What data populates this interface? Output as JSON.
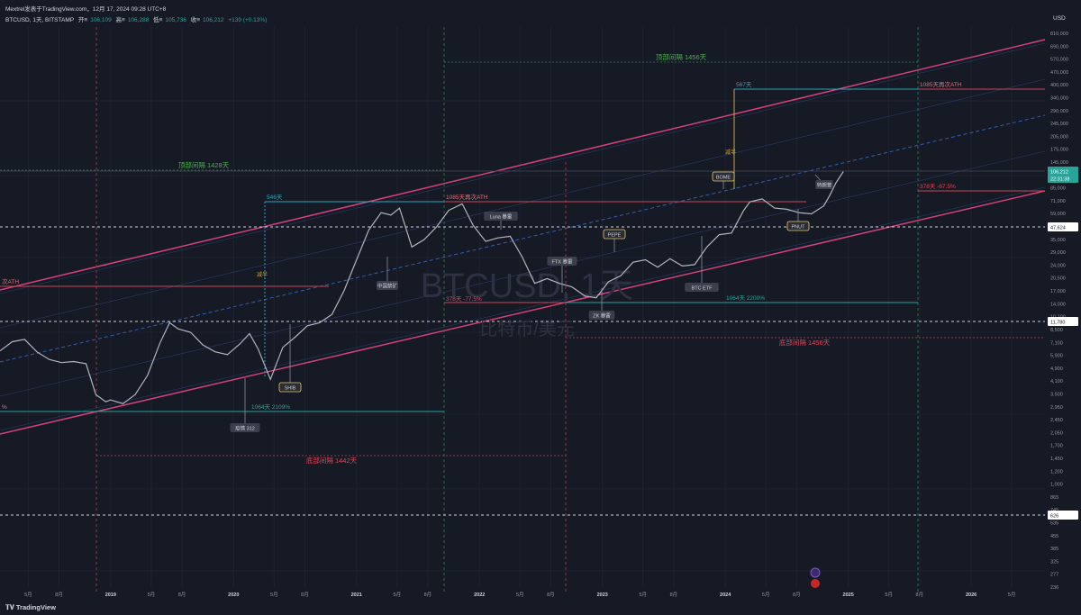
{
  "header": {
    "publisher": "Mextrel发表于TradingView.com，12月 17, 2024 09:28 UTC+8",
    "symbol": "BTCUSD, 1天, BITSTAMP",
    "open_label": "开≡",
    "open_value": "106,109",
    "high_label": "高≡",
    "high_value": "106,288",
    "low_label": "低≡",
    "low_value": "105,736",
    "close_label": "收≡",
    "close_value": "106,212",
    "change": "+139 (+0.13%)"
  },
  "watermark": {
    "ticker": "BTCUSD, 1天",
    "name": "比特币/美元"
  },
  "price_axis": {
    "currency": "USD",
    "ticks": [
      "810,000",
      "690,000",
      "570,000",
      "470,000",
      "400,000",
      "340,000",
      "290,000",
      "245,000",
      "205,000",
      "175,000",
      "145,000",
      "121,000",
      "85,000",
      "71,000",
      "59,000",
      "41,000",
      "35,000",
      "29,000",
      "24,000",
      "20,500",
      "17,000",
      "14,000",
      "10,100",
      "8,500",
      "7,100",
      "5,900",
      "4,900",
      "4,100",
      "3,500",
      "2,950",
      "2,450",
      "2,050",
      "1,700",
      "1,450",
      "1,200",
      "1,000",
      "865",
      "745",
      "535",
      "455",
      "385",
      "325",
      "277",
      "236"
    ],
    "current_price": "106,212",
    "countdown": "22:31:38",
    "level_47624": "47,624",
    "level_11780": "11,780",
    "level_626": "626",
    "colors": {
      "up": "#26a69a",
      "level_bg": "#ffffff",
      "level_text": "#131722"
    }
  },
  "time_axis": {
    "labels": [
      {
        "text": "5月",
        "t": 2018.33
      },
      {
        "text": "8月",
        "t": 2018.58
      },
      {
        "text": "2019",
        "t": 2019.0
      },
      {
        "text": "5月",
        "t": 2019.33
      },
      {
        "text": "8月",
        "t": 2019.58
      },
      {
        "text": "2020",
        "t": 2020.0
      },
      {
        "text": "5月",
        "t": 2020.33
      },
      {
        "text": "8月",
        "t": 2020.58
      },
      {
        "text": "2021",
        "t": 2021.0
      },
      {
        "text": "5月",
        "t": 2021.33
      },
      {
        "text": "8月",
        "t": 2021.58
      },
      {
        "text": "2022",
        "t": 2022.0
      },
      {
        "text": "5月",
        "t": 2022.33
      },
      {
        "text": "8月",
        "t": 2022.58
      },
      {
        "text": "2023",
        "t": 2023.0
      },
      {
        "text": "5月",
        "t": 2023.33
      },
      {
        "text": "8月",
        "t": 2023.58
      },
      {
        "text": "2024",
        "t": 2024.0
      },
      {
        "text": "5月",
        "t": 2024.33
      },
      {
        "text": "8月",
        "t": 2024.58
      },
      {
        "text": "2025",
        "t": 2025.0
      },
      {
        "text": "5月",
        "t": 2025.33
      },
      {
        "text": "8月",
        "t": 2025.58
      },
      {
        "text": "2026",
        "t": 2026.0
      },
      {
        "text": "5月",
        "t": 2026.33
      }
    ]
  },
  "annotations": {
    "top_interval_1": "顶部间隔 1428天",
    "top_interval_2": "顶部间隔 1456天",
    "bottom_interval_1": "底部间隔 1442天",
    "bottom_interval_2": "底部间隔 1456天",
    "days_546": "546天",
    "days_567": "567天",
    "ath_1085_a": "1085天再次ATH",
    "ath_1085_b": "1085天再次ATH",
    "ath_left": "次ATH",
    "pct_left": "%",
    "drop_378_a": "378天 -77.5%",
    "drop_378_b": "378天 -67.5%",
    "rise_1064_a": "1064天 2109%",
    "rise_1064_b": "1064天 2200%",
    "halving_1": "减半",
    "halving_2": "减半"
  },
  "events": [
    {
      "label": "SHIB",
      "highlight": true
    },
    {
      "label": "疫情 312",
      "highlight": false
    },
    {
      "label": "中国禁矿",
      "highlight": false
    },
    {
      "label": "Luna 暴雷",
      "highlight": false
    },
    {
      "label": "FTX 暴雷",
      "highlight": false
    },
    {
      "label": "ZK 暴雷",
      "highlight": false
    },
    {
      "label": "PEPE",
      "highlight": true
    },
    {
      "label": "BTC ETF",
      "highlight": false
    },
    {
      "label": "BOME",
      "highlight": true
    },
    {
      "label": "PNUT",
      "highlight": true
    },
    {
      "label": "特朗普",
      "highlight": false
    }
  ],
  "chart_data": {
    "type": "line",
    "x_unit": "year",
    "y_scale": "log",
    "ylim": [
      236,
      810000
    ],
    "xlim": [
      2018.1,
      2026.6
    ],
    "series": [
      {
        "x": [
          2018.1,
          2018.2,
          2018.3,
          2018.4,
          2018.5,
          2018.6,
          2018.7,
          2018.8,
          2018.88,
          2018.96,
          2019.0,
          2019.1,
          2019.2,
          2019.3,
          2019.4,
          2019.48,
          2019.55,
          2019.65,
          2019.75,
          2019.85,
          2019.95,
          2020.05,
          2020.13,
          2020.2,
          2020.3,
          2020.4,
          2020.5,
          2020.6,
          2020.7,
          2020.8,
          2020.9,
          2021.0,
          2021.1,
          2021.2,
          2021.28,
          2021.35,
          2021.45,
          2021.55,
          2021.65,
          2021.75,
          2021.86,
          2021.95,
          2022.05,
          2022.15,
          2022.25,
          2022.35,
          2022.45,
          2022.55,
          2022.65,
          2022.75,
          2022.86,
          2022.95,
          2023.05,
          2023.15,
          2023.25,
          2023.35,
          2023.45,
          2023.55,
          2023.65,
          2023.75,
          2023.85,
          2023.95,
          2024.05,
          2024.15,
          2024.2,
          2024.3,
          2024.4,
          2024.5,
          2024.6,
          2024.7,
          2024.8,
          2024.85,
          2024.9,
          2024.96
        ],
        "y": [
          7600,
          8700,
          9000,
          7500,
          6700,
          6400,
          6500,
          6300,
          4000,
          3600,
          3700,
          3500,
          4000,
          5300,
          8500,
          11500,
          10500,
          10000,
          8300,
          7500,
          7200,
          8400,
          9800,
          7800,
          5000,
          8000,
          9300,
          11000,
          11500,
          13000,
          18500,
          29000,
          45000,
          58000,
          56000,
          62000,
          35000,
          39000,
          47000,
          60000,
          66000,
          48000,
          38000,
          40000,
          41000,
          30000,
          20500,
          22000,
          20500,
          19500,
          17000,
          16600,
          21000,
          23000,
          28000,
          29000,
          26000,
          29500,
          26500,
          27000,
          35000,
          42000,
          43000,
          60000,
          68000,
          71000,
          62000,
          61000,
          58000,
          57000,
          64000,
          75000,
          90000,
          106212
        ]
      }
    ]
  }
}
